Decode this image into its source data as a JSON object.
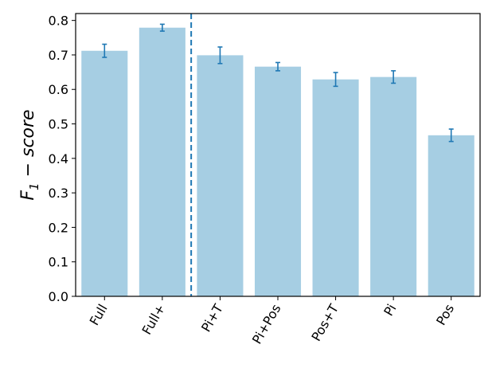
{
  "chart_data": {
    "type": "bar",
    "title": "",
    "xlabel": "",
    "ylabel": {
      "main": "F",
      "subscript": "1",
      "rest": " − score"
    },
    "categories": [
      "Full",
      "Full+",
      "Pi+T",
      "Pi+Pos",
      "Pos+T",
      "Pi",
      "Pos"
    ],
    "values": [
      0.712,
      0.779,
      0.699,
      0.666,
      0.629,
      0.636,
      0.467
    ],
    "errors": [
      0.019,
      0.01,
      0.024,
      0.012,
      0.02,
      0.018,
      0.018
    ],
    "ylim": [
      0,
      0.82
    ],
    "yticks": [
      "0.0",
      "0.1",
      "0.2",
      "0.3",
      "0.4",
      "0.5",
      "0.6",
      "0.7",
      "0.8"
    ],
    "ytick_values": [
      0,
      0.1,
      0.2,
      0.3,
      0.4,
      0.5,
      0.6,
      0.7,
      0.8
    ],
    "xtick_rotation_deg": 60,
    "separator_after_index": 1,
    "grid": false,
    "legend": "none",
    "colors": {
      "bar": "#a6cee3",
      "error": "#1f78b4",
      "separator": "#1f78b4",
      "axis": "#000000"
    }
  }
}
